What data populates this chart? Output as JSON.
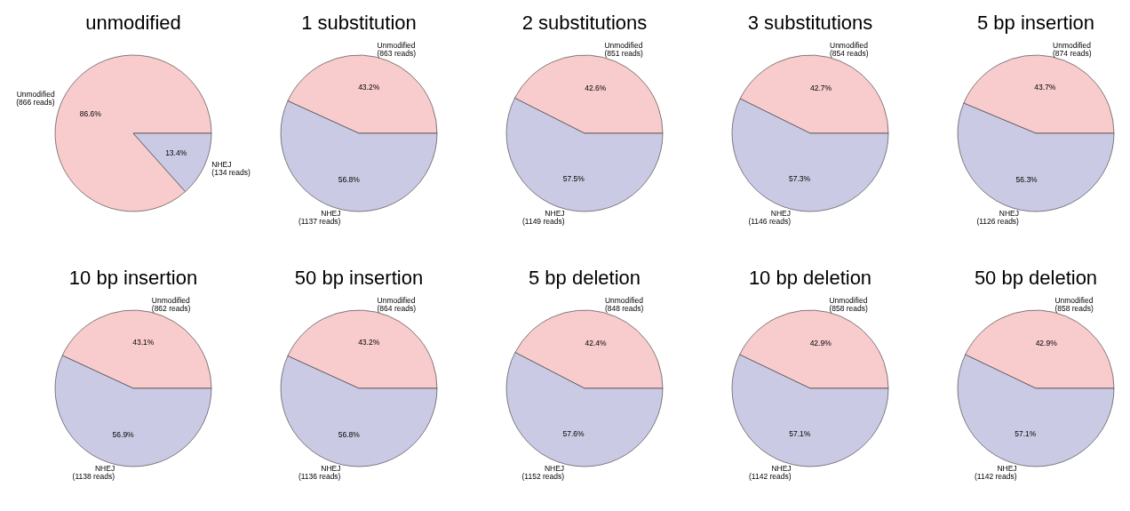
{
  "chart_data": [
    {
      "type": "pie",
      "title": "unmodified",
      "categories": [
        "Unmodified\n(866 reads)",
        "NHEJ\n(134 reads)"
      ],
      "values": [
        86.6,
        13.4
      ],
      "value_labels": [
        "86.6%",
        "13.4%"
      ],
      "colors": [
        "#f8cbcd",
        "#cbcae4"
      ]
    },
    {
      "type": "pie",
      "title": "1 substitution",
      "categories": [
        "Unmodified\n(863 reads)",
        "NHEJ\n(1137 reads)"
      ],
      "values": [
        43.2,
        56.8
      ],
      "value_labels": [
        "43.2%",
        "56.8%"
      ],
      "colors": [
        "#f8cbcd",
        "#cbcae4"
      ]
    },
    {
      "type": "pie",
      "title": "2 substitutions",
      "categories": [
        "Unmodified\n(851 reads)",
        "NHEJ\n(1149 reads)"
      ],
      "values": [
        42.6,
        57.5
      ],
      "value_labels": [
        "42.6%",
        "57.5%"
      ],
      "colors": [
        "#f8cbcd",
        "#cbcae4"
      ]
    },
    {
      "type": "pie",
      "title": "3 substitutions",
      "categories": [
        "Unmodified\n(854 reads)",
        "NHEJ\n(1146 reads)"
      ],
      "values": [
        42.7,
        57.3
      ],
      "value_labels": [
        "42.7%",
        "57.3%"
      ],
      "colors": [
        "#f8cbcd",
        "#cbcae4"
      ]
    },
    {
      "type": "pie",
      "title": "5 bp insertion",
      "categories": [
        "Unmodified\n(874 reads)",
        "NHEJ\n(1126 reads)"
      ],
      "values": [
        43.7,
        56.3
      ],
      "value_labels": [
        "43.7%",
        "56.3%"
      ],
      "colors": [
        "#f8cbcd",
        "#cbcae4"
      ]
    },
    {
      "type": "pie",
      "title": "10 bp insertion",
      "categories": [
        "Unmodified\n(862 reads)",
        "NHEJ\n(1138 reads)"
      ],
      "values": [
        43.1,
        56.9
      ],
      "value_labels": [
        "43.1%",
        "56.9%"
      ],
      "colors": [
        "#f8cbcd",
        "#cbcae4"
      ]
    },
    {
      "type": "pie",
      "title": "50 bp insertion",
      "categories": [
        "Unmodified\n(864 reads)",
        "NHEJ\n(1136 reads)"
      ],
      "values": [
        43.2,
        56.8
      ],
      "value_labels": [
        "43.2%",
        "56.8%"
      ],
      "colors": [
        "#f8cbcd",
        "#cbcae4"
      ]
    },
    {
      "type": "pie",
      "title": "5 bp deletion",
      "categories": [
        "Unmodified\n(848 reads)",
        "NHEJ\n(1152 reads)"
      ],
      "values": [
        42.4,
        57.6
      ],
      "value_labels": [
        "42.4%",
        "57.6%"
      ],
      "colors": [
        "#f8cbcd",
        "#cbcae4"
      ]
    },
    {
      "type": "pie",
      "title": "10 bp deletion",
      "categories": [
        "Unmodified\n(858 reads)",
        "NHEJ\n(1142 reads)"
      ],
      "values": [
        42.9,
        57.1
      ],
      "value_labels": [
        "42.9%",
        "57.1%"
      ],
      "colors": [
        "#f8cbcd",
        "#cbcae4"
      ]
    },
    {
      "type": "pie",
      "title": "50 bp deletion",
      "categories": [
        "Unmodified\n(858 reads)",
        "NHEJ\n(1142 reads)"
      ],
      "values": [
        42.9,
        57.1
      ],
      "value_labels": [
        "42.9%",
        "57.1%"
      ],
      "colors": [
        "#f8cbcd",
        "#cbcae4"
      ]
    }
  ]
}
